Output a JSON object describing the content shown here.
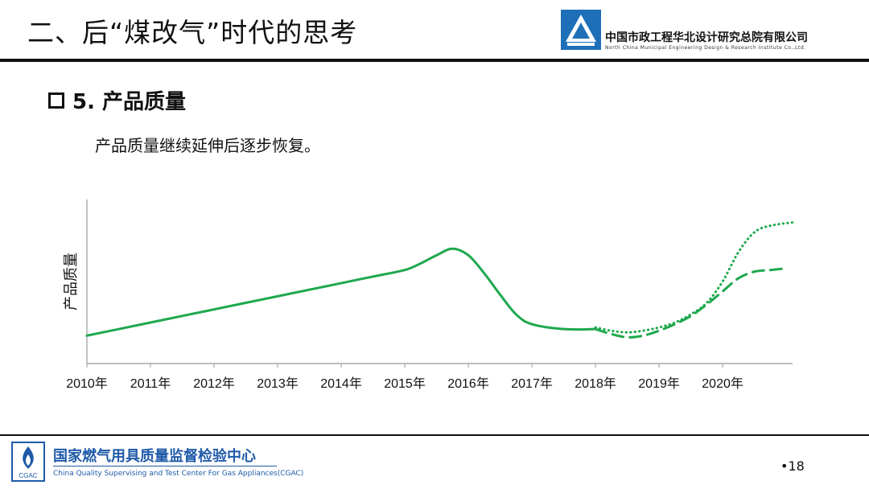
{
  "header": {
    "title": "二、后“煤改气”时代的思考",
    "org_name": "中国市政工程华北设计研究总院有限公司",
    "org_name_en": "North China Municipal Engineering Design & Research Institute Co.,Ltd."
  },
  "section": {
    "heading": "5. 产品质量",
    "body": "产品质量继续延伸后逐步恢复。"
  },
  "footer": {
    "org_name": "国家燃气用具质量监督检验中心",
    "org_name_en": "China Quality Supervising and Test Center For Gas Appliances(CGAC)",
    "page_number": "•18",
    "logo_text": "CGAC"
  },
  "colors": {
    "series": "#1ea84e",
    "brand_blue": "#1f5aa8",
    "logo_blue": "#1e6fb8"
  },
  "chart_data": {
    "type": "line",
    "title": "",
    "xlabel": "",
    "ylabel": "产品质量",
    "categories": [
      "2010年",
      "2011年",
      "2012年",
      "2013年",
      "2014年",
      "2015年",
      "2016年",
      "2017年",
      "2018年",
      "2019年",
      "2020年"
    ],
    "xlim": [
      2010,
      2021.1
    ],
    "ylim": [
      0,
      100
    ],
    "y_ticks_shown": false,
    "series": [
      {
        "style": "solid",
        "x": [
          2010,
          2010.5,
          2011,
          2011.5,
          2012,
          2012.5,
          2013,
          2013.5,
          2014,
          2014.5,
          2015,
          2015.25,
          2015.5,
          2015.75,
          2016,
          2016.25,
          2016.5,
          2016.75,
          2017,
          2017.5,
          2018
        ],
        "y": [
          17,
          21,
          25,
          29,
          33,
          37,
          41,
          45,
          49,
          53,
          57,
          61,
          66,
          70,
          66,
          55,
          42,
          30,
          24,
          21,
          21
        ]
      },
      {
        "style": "dotted",
        "x": [
          2018,
          2018.25,
          2018.5,
          2018.75,
          2019,
          2019.25,
          2019.5,
          2019.75,
          2020,
          2020.25,
          2020.5,
          2020.75,
          2021.1
        ],
        "y": [
          22,
          20,
          19,
          20,
          22,
          25,
          30,
          37,
          50,
          68,
          80,
          84,
          86
        ]
      },
      {
        "style": "dashed",
        "x": [
          2018,
          2018.25,
          2018.5,
          2018.75,
          2019,
          2019.25,
          2019.5,
          2019.75,
          2020,
          2020.25,
          2020.5,
          2020.75,
          2021
        ],
        "y": [
          21,
          18,
          16,
          17,
          20,
          24,
          29,
          36,
          44,
          52,
          56,
          57,
          58
        ]
      }
    ],
    "grid": false,
    "legend": "none"
  }
}
